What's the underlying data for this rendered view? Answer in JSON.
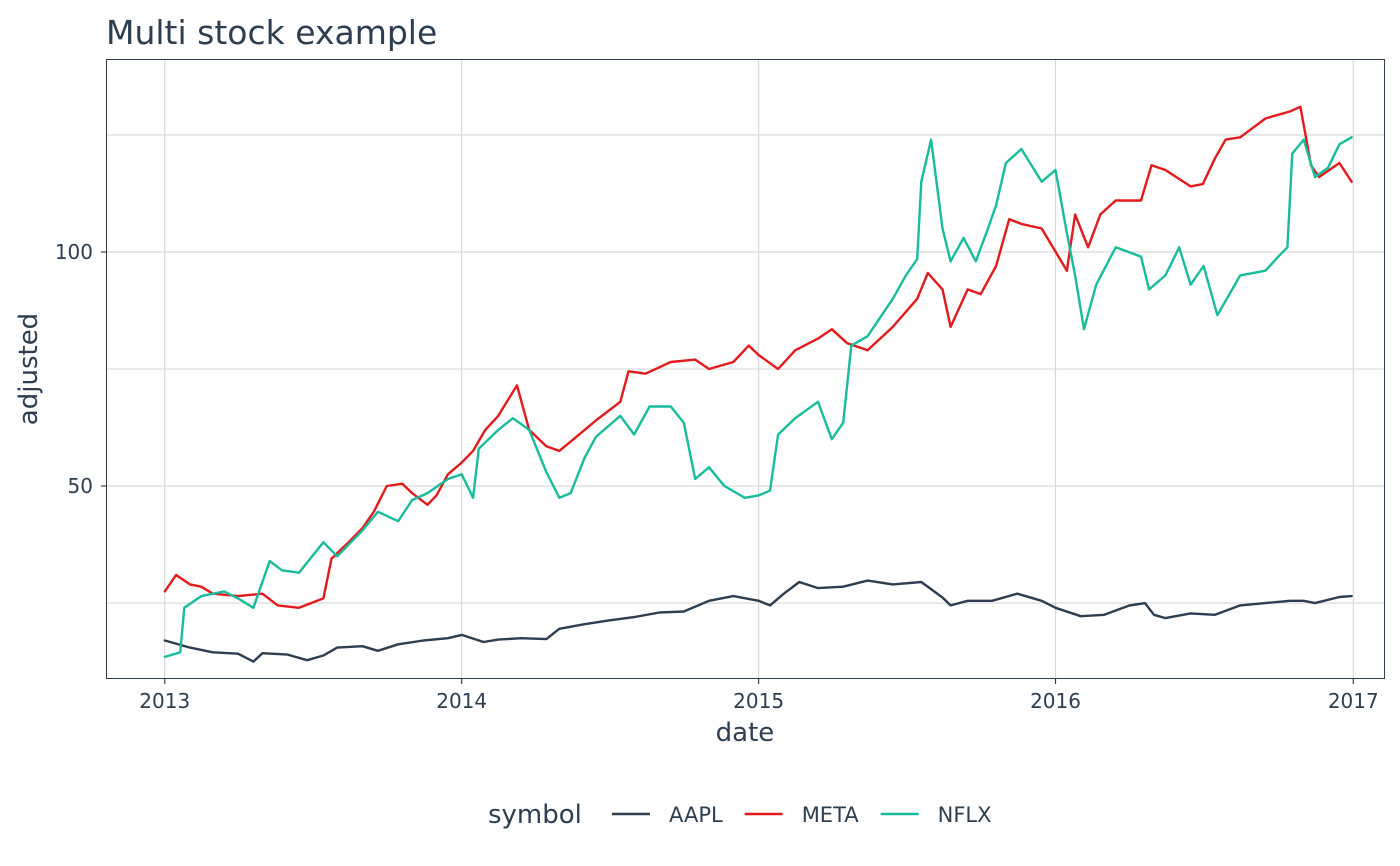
{
  "chart_data": {
    "type": "line",
    "title": "Multi stock example",
    "xlabel": "date",
    "ylabel": "adjusted",
    "x_ticks": [
      "2013",
      "2014",
      "2015",
      "2016",
      "2017"
    ],
    "y_ticks": [
      50,
      100
    ],
    "xlim": [
      "2012-10-22",
      "2017-02-09"
    ],
    "ylim": [
      9,
      141
    ],
    "grid": true,
    "legend": {
      "title": "symbol",
      "position": "bottom",
      "entries": [
        "AAPL",
        "META",
        "NFLX"
      ]
    },
    "series": [
      {
        "name": "AAPL",
        "color": "#2c3e50",
        "points": [
          [
            "2013-01-01",
            17
          ],
          [
            "2013-02-01",
            15.5
          ],
          [
            "2013-03-01",
            14.5
          ],
          [
            "2013-04-01",
            14.2
          ],
          [
            "2013-04-20",
            12.5
          ],
          [
            "2013-05-01",
            14.3
          ],
          [
            "2013-06-01",
            14
          ],
          [
            "2013-06-25",
            12.8
          ],
          [
            "2013-07-15",
            13.8
          ],
          [
            "2013-08-01",
            15.5
          ],
          [
            "2013-09-01",
            15.8
          ],
          [
            "2013-09-20",
            14.8
          ],
          [
            "2013-10-15",
            16.2
          ],
          [
            "2013-11-15",
            17
          ],
          [
            "2013-12-15",
            17.5
          ],
          [
            "2014-01-01",
            18.2
          ],
          [
            "2014-01-28",
            16.7
          ],
          [
            "2014-02-15",
            17.2
          ],
          [
            "2014-03-15",
            17.5
          ],
          [
            "2014-04-15",
            17.3
          ],
          [
            "2014-05-01",
            19.5
          ],
          [
            "2014-06-01",
            20.5
          ],
          [
            "2014-07-01",
            21.3
          ],
          [
            "2014-08-01",
            22
          ],
          [
            "2014-09-01",
            23
          ],
          [
            "2014-10-01",
            23.2
          ],
          [
            "2014-11-01",
            25.5
          ],
          [
            "2014-12-01",
            26.5
          ],
          [
            "2015-01-01",
            25.5
          ],
          [
            "2015-01-15",
            24.5
          ],
          [
            "2015-02-01",
            27
          ],
          [
            "2015-02-20",
            29.5
          ],
          [
            "2015-03-15",
            28.2
          ],
          [
            "2015-04-15",
            28.5
          ],
          [
            "2015-05-15",
            29.8
          ],
          [
            "2015-06-15",
            29
          ],
          [
            "2015-07-20",
            29.5
          ],
          [
            "2015-08-15",
            26.2
          ],
          [
            "2015-08-25",
            24.5
          ],
          [
            "2015-09-15",
            25.5
          ],
          [
            "2015-10-15",
            25.5
          ],
          [
            "2015-11-15",
            27
          ],
          [
            "2015-12-15",
            25.5
          ],
          [
            "2016-01-01",
            24
          ],
          [
            "2016-02-01",
            22.2
          ],
          [
            "2016-03-01",
            22.5
          ],
          [
            "2016-04-01",
            24.5
          ],
          [
            "2016-04-20",
            25
          ],
          [
            "2016-05-01",
            22.5
          ],
          [
            "2016-05-15",
            21.8
          ],
          [
            "2016-06-15",
            22.8
          ],
          [
            "2016-07-15",
            22.5
          ],
          [
            "2016-08-15",
            24.5
          ],
          [
            "2016-09-15",
            25
          ],
          [
            "2016-10-15",
            25.5
          ],
          [
            "2016-11-01",
            25.5
          ],
          [
            "2016-11-15",
            25
          ],
          [
            "2016-12-15",
            26.3
          ],
          [
            "2016-12-30",
            26.5
          ]
        ]
      },
      {
        "name": "META",
        "color": "#e31a1c",
        "points": [
          [
            "2013-01-01",
            27.5
          ],
          [
            "2013-01-15",
            31
          ],
          [
            "2013-02-01",
            29
          ],
          [
            "2013-02-15",
            28.5
          ],
          [
            "2013-03-01",
            27
          ],
          [
            "2013-04-01",
            26.5
          ],
          [
            "2013-05-01",
            27
          ],
          [
            "2013-05-20",
            24.5
          ],
          [
            "2013-06-15",
            24
          ],
          [
            "2013-07-15",
            26
          ],
          [
            "2013-07-25",
            34.5
          ],
          [
            "2013-08-15",
            38
          ],
          [
            "2013-09-01",
            41
          ],
          [
            "2013-09-15",
            44.5
          ],
          [
            "2013-10-01",
            50
          ],
          [
            "2013-10-20",
            50.5
          ],
          [
            "2013-11-01",
            48.5
          ],
          [
            "2013-11-20",
            46
          ],
          [
            "2013-12-01",
            48
          ],
          [
            "2013-12-15",
            52.5
          ],
          [
            "2014-01-01",
            55
          ],
          [
            "2014-01-15",
            57.5
          ],
          [
            "2014-01-30",
            62
          ],
          [
            "2014-02-15",
            65
          ],
          [
            "2014-03-01",
            69
          ],
          [
            "2014-03-10",
            71.5
          ],
          [
            "2014-03-25",
            62
          ],
          [
            "2014-04-15",
            58.5
          ],
          [
            "2014-05-01",
            57.5
          ],
          [
            "2014-05-15",
            59.5
          ],
          [
            "2014-06-15",
            64
          ],
          [
            "2014-07-15",
            68
          ],
          [
            "2014-07-25",
            74.5
          ],
          [
            "2014-08-15",
            74
          ],
          [
            "2014-09-15",
            76.5
          ],
          [
            "2014-10-15",
            77
          ],
          [
            "2014-11-01",
            75
          ],
          [
            "2014-12-01",
            76.5
          ],
          [
            "2014-12-20",
            80
          ],
          [
            "2015-01-01",
            78
          ],
          [
            "2015-01-25",
            75
          ],
          [
            "2015-02-15",
            79
          ],
          [
            "2015-03-15",
            81.5
          ],
          [
            "2015-04-01",
            83.5
          ],
          [
            "2015-04-20",
            80.5
          ],
          [
            "2015-05-15",
            79
          ],
          [
            "2015-06-15",
            84
          ],
          [
            "2015-07-15",
            90
          ],
          [
            "2015-07-28",
            95.5
          ],
          [
            "2015-08-15",
            92
          ],
          [
            "2015-08-25",
            84
          ],
          [
            "2015-09-15",
            92
          ],
          [
            "2015-10-01",
            91
          ],
          [
            "2015-10-20",
            97
          ],
          [
            "2015-11-05",
            107
          ],
          [
            "2015-11-20",
            106
          ],
          [
            "2015-12-15",
            105
          ],
          [
            "2016-01-15",
            96
          ],
          [
            "2016-01-25",
            108
          ],
          [
            "2016-02-10",
            101
          ],
          [
            "2016-02-25",
            108
          ],
          [
            "2016-03-15",
            111
          ],
          [
            "2016-04-15",
            111
          ],
          [
            "2016-04-28",
            118.5
          ],
          [
            "2016-05-15",
            117.5
          ],
          [
            "2016-06-15",
            114
          ],
          [
            "2016-06-30",
            114.5
          ],
          [
            "2016-07-15",
            120
          ],
          [
            "2016-07-28",
            124
          ],
          [
            "2016-08-15",
            124.5
          ],
          [
            "2016-09-15",
            128.5
          ],
          [
            "2016-10-15",
            130
          ],
          [
            "2016-10-28",
            131
          ],
          [
            "2016-11-10",
            118.5
          ],
          [
            "2016-11-20",
            116
          ],
          [
            "2016-12-15",
            119
          ],
          [
            "2016-12-30",
            115
          ]
        ]
      },
      {
        "name": "NFLX",
        "color": "#18bc9c",
        "points": [
          [
            "2013-01-01",
            13.5
          ],
          [
            "2013-01-20",
            14.5
          ],
          [
            "2013-01-25",
            24
          ],
          [
            "2013-02-15",
            26.5
          ],
          [
            "2013-03-15",
            27.5
          ],
          [
            "2013-04-01",
            26
          ],
          [
            "2013-04-20",
            24
          ],
          [
            "2013-05-10",
            34
          ],
          [
            "2013-05-25",
            32
          ],
          [
            "2013-06-15",
            31.5
          ],
          [
            "2013-07-15",
            38
          ],
          [
            "2013-08-01",
            35
          ],
          [
            "2013-09-01",
            40.5
          ],
          [
            "2013-09-20",
            44.5
          ],
          [
            "2013-10-15",
            42.5
          ],
          [
            "2013-11-01",
            47
          ],
          [
            "2013-11-20",
            48.5
          ],
          [
            "2013-12-15",
            51.5
          ],
          [
            "2014-01-01",
            52.5
          ],
          [
            "2014-01-15",
            47.5
          ],
          [
            "2014-01-22",
            58
          ],
          [
            "2014-02-15",
            62
          ],
          [
            "2014-03-05",
            64.5
          ],
          [
            "2014-03-25",
            62
          ],
          [
            "2014-04-15",
            53
          ],
          [
            "2014-05-01",
            47.5
          ],
          [
            "2014-05-15",
            48.5
          ],
          [
            "2014-06-01",
            56
          ],
          [
            "2014-06-15",
            60.5
          ],
          [
            "2014-07-15",
            65
          ],
          [
            "2014-08-01",
            61
          ],
          [
            "2014-08-20",
            67
          ],
          [
            "2014-09-15",
            67
          ],
          [
            "2014-10-01",
            63.5
          ],
          [
            "2014-10-15",
            51.5
          ],
          [
            "2014-11-01",
            54
          ],
          [
            "2014-11-20",
            50
          ],
          [
            "2014-12-15",
            47.5
          ],
          [
            "2015-01-01",
            48
          ],
          [
            "2015-01-15",
            49
          ],
          [
            "2015-01-25",
            61
          ],
          [
            "2015-02-15",
            64.5
          ],
          [
            "2015-03-15",
            68
          ],
          [
            "2015-04-01",
            60
          ],
          [
            "2015-04-15",
            63.5
          ],
          [
            "2015-04-25",
            80
          ],
          [
            "2015-05-15",
            82
          ],
          [
            "2015-06-15",
            90
          ],
          [
            "2015-07-01",
            95
          ],
          [
            "2015-07-15",
            98.5
          ],
          [
            "2015-07-20",
            115
          ],
          [
            "2015-08-01",
            124
          ],
          [
            "2015-08-15",
            105
          ],
          [
            "2015-08-25",
            98
          ],
          [
            "2015-09-10",
            103
          ],
          [
            "2015-09-25",
            98
          ],
          [
            "2015-10-10",
            105
          ],
          [
            "2015-10-20",
            110
          ],
          [
            "2015-11-01",
            119
          ],
          [
            "2015-11-20",
            122
          ],
          [
            "2015-12-15",
            115
          ],
          [
            "2016-01-01",
            117.5
          ],
          [
            "2016-01-15",
            104
          ],
          [
            "2016-01-25",
            95
          ],
          [
            "2016-02-05",
            83.5
          ],
          [
            "2016-02-20",
            93
          ],
          [
            "2016-03-15",
            101
          ],
          [
            "2016-04-15",
            99
          ],
          [
            "2016-04-25",
            92
          ],
          [
            "2016-05-15",
            95
          ],
          [
            "2016-06-01",
            101
          ],
          [
            "2016-06-15",
            93
          ],
          [
            "2016-07-01",
            97
          ],
          [
            "2016-07-18",
            86.5
          ],
          [
            "2016-08-15",
            95
          ],
          [
            "2016-09-15",
            96
          ],
          [
            "2016-10-01",
            99
          ],
          [
            "2016-10-12",
            101
          ],
          [
            "2016-10-18",
            121
          ],
          [
            "2016-11-01",
            124
          ],
          [
            "2016-11-15",
            116
          ],
          [
            "2016-12-01",
            118
          ],
          [
            "2016-12-15",
            123
          ],
          [
            "2016-12-30",
            124.5
          ]
        ]
      }
    ]
  }
}
